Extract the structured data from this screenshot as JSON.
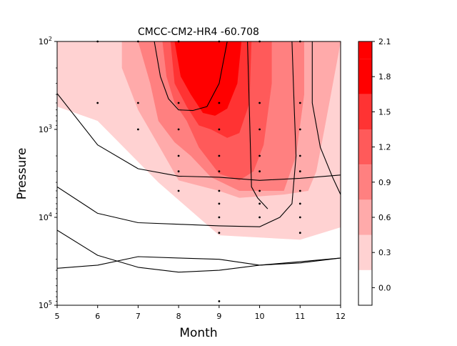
{
  "chart_data": {
    "type": "contour",
    "title": "CMCC-CM2-HR4 -60.708",
    "xlabel": "Month",
    "ylabel": "Pressure",
    "x_ticks": [
      "5",
      "6",
      "7",
      "8",
      "9",
      "10",
      "11",
      "12"
    ],
    "y_ticks": [
      {
        "value": 100,
        "base": "10",
        "exp": "2"
      },
      {
        "value": 1000,
        "base": "10",
        "exp": "3"
      },
      {
        "value": 10000,
        "base": "10",
        "exp": "4"
      },
      {
        "value": 100000,
        "base": "10",
        "exp": "5"
      }
    ],
    "xlim": [
      5,
      12
    ],
    "ylim": [
      100000,
      100
    ],
    "y_scale": "log",
    "y_inverted": true,
    "grid": false,
    "colorbar": {
      "ticks": [
        "0.0",
        "0.3",
        "0.6",
        "0.9",
        "1.2",
        "1.5",
        "1.8",
        "2.1"
      ],
      "levels": [
        -0.15,
        0.15,
        0.45,
        0.75,
        1.05,
        1.35,
        1.65,
        1.95,
        2.1
      ],
      "colors": [
        "#ffffff",
        "#ffd2d2",
        "#ffaaaa",
        "#ff8080",
        "#ff5a5a",
        "#ff3333",
        "#ff0000",
        "#ff0000"
      ]
    },
    "filled_regions": [
      {
        "level": 0.3,
        "points": [
          [
            5,
            100
          ],
          [
            12,
            100
          ],
          [
            12,
            13000
          ],
          [
            11,
            18000
          ],
          [
            9,
            16000
          ],
          [
            7.5,
            4000
          ],
          [
            6,
            800
          ],
          [
            5,
            550
          ]
        ]
      },
      {
        "level": 0.6,
        "points": [
          [
            6.6,
            100
          ],
          [
            12,
            100
          ],
          [
            11.95,
            135
          ],
          [
            11.6,
            1000
          ],
          [
            11.4,
            3000
          ],
          [
            11.2,
            5000
          ],
          [
            10.6,
            5500
          ],
          [
            9.5,
            6000
          ],
          [
            9,
            5000
          ],
          [
            8,
            3800
          ],
          [
            7.5,
            1500
          ],
          [
            7,
            600
          ],
          [
            6.6,
            200
          ]
        ]
      },
      {
        "level": 0.9,
        "points": [
          [
            7,
            100
          ],
          [
            11.1,
            100
          ],
          [
            11.1,
            400
          ],
          [
            10.9,
            2000
          ],
          [
            10.6,
            5000
          ],
          [
            9.5,
            5000
          ],
          [
            8.8,
            3500
          ],
          [
            8.3,
            2000
          ],
          [
            7.9,
            1400
          ],
          [
            7.5,
            800
          ],
          [
            7.3,
            300
          ]
        ]
      },
      {
        "level": 1.2,
        "points": [
          [
            7.6,
            100
          ],
          [
            10.3,
            100
          ],
          [
            10.3,
            300
          ],
          [
            10.1,
            1500
          ],
          [
            9.85,
            3000
          ],
          [
            9.5,
            3800
          ],
          [
            9,
            3200
          ],
          [
            8.5,
            1600
          ],
          [
            8.2,
            800
          ],
          [
            7.9,
            500
          ],
          [
            7.7,
            250
          ]
        ]
      },
      {
        "level": 1.5,
        "points": [
          [
            7.8,
            100
          ],
          [
            9.8,
            100
          ],
          [
            9.75,
            500
          ],
          [
            9.5,
            1100
          ],
          [
            9.2,
            1250
          ],
          [
            8.8,
            1000
          ],
          [
            8.5,
            900
          ],
          [
            8.2,
            550
          ],
          [
            7.9,
            300
          ]
        ]
      },
      {
        "level": 1.8,
        "points": [
          [
            7.9,
            100
          ],
          [
            9.55,
            100
          ],
          [
            9.45,
            300
          ],
          [
            9.2,
            580
          ],
          [
            8.9,
            700
          ],
          [
            8.6,
            650
          ],
          [
            8.3,
            400
          ],
          [
            8.05,
            250
          ]
        ]
      }
    ],
    "contour_lines": [
      [
        [
          5,
          390
        ],
        [
          6,
          1500
        ],
        [
          7,
          2800
        ],
        [
          8,
          3400
        ],
        [
          9,
          3500
        ],
        [
          10,
          3800
        ],
        [
          11,
          3600
        ],
        [
          12,
          3300
        ]
      ],
      [
        [
          5,
          4500
        ],
        [
          6,
          9000
        ],
        [
          7,
          11500
        ],
        [
          8,
          12000
        ],
        [
          9,
          12500
        ],
        [
          10,
          12800
        ],
        [
          10.5,
          10000
        ],
        [
          10.8,
          7000
        ],
        [
          10.9,
          2000
        ],
        [
          10.85,
          500
        ],
        [
          10.8,
          100
        ]
      ],
      [
        [
          5,
          14000
        ],
        [
          6,
          27000
        ],
        [
          7,
          37000
        ],
        [
          8,
          42000
        ],
        [
          9,
          40000
        ],
        [
          10,
          35000
        ],
        [
          11,
          33000
        ],
        [
          12,
          29000
        ]
      ],
      [
        [
          5,
          38000
        ],
        [
          6,
          35000
        ],
        [
          7,
          28000
        ],
        [
          8,
          29000
        ],
        [
          9,
          30000
        ],
        [
          10,
          35000
        ],
        [
          11,
          32000
        ],
        [
          12,
          29000
        ]
      ],
      [
        [
          7.4,
          100
        ],
        [
          7.55,
          250
        ],
        [
          7.75,
          450
        ],
        [
          8,
          600
        ],
        [
          8.35,
          610
        ],
        [
          8.7,
          550
        ],
        [
          9,
          300
        ],
        [
          9.2,
          100
        ]
      ],
      [
        [
          9.7,
          100
        ],
        [
          9.8,
          4500
        ],
        [
          9.95,
          6000
        ],
        [
          10.2,
          8000
        ]
      ],
      [
        [
          11.3,
          100
        ],
        [
          11.3,
          500
        ],
        [
          11.5,
          1600
        ],
        [
          11.8,
          3500
        ],
        [
          12,
          5500
        ]
      ]
    ],
    "dots": [
      [
        6,
        100
      ],
      [
        7,
        100
      ],
      [
        8,
        100
      ],
      [
        9,
        100
      ],
      [
        10,
        100
      ],
      [
        11,
        100
      ],
      [
        6,
        500
      ],
      [
        7,
        500
      ],
      [
        8,
        500
      ],
      [
        9,
        500
      ],
      [
        10,
        500
      ],
      [
        11,
        500
      ],
      [
        7,
        1000
      ],
      [
        8,
        1000
      ],
      [
        9,
        1000
      ],
      [
        10,
        1000
      ],
      [
        11,
        1000
      ],
      [
        8,
        2000
      ],
      [
        9,
        2000
      ],
      [
        10,
        2000
      ],
      [
        11,
        2000
      ],
      [
        8,
        3000
      ],
      [
        9,
        3000
      ],
      [
        10,
        3000
      ],
      [
        11,
        3000
      ],
      [
        8,
        5000
      ],
      [
        9,
        5000
      ],
      [
        10,
        5000
      ],
      [
        11,
        5000
      ],
      [
        9,
        7000
      ],
      [
        10,
        7000
      ],
      [
        11,
        7000
      ],
      [
        9,
        10000
      ],
      [
        10,
        10000
      ],
      [
        11,
        10000
      ],
      [
        9,
        15000
      ],
      [
        11,
        15000
      ],
      [
        9,
        90000
      ]
    ]
  }
}
